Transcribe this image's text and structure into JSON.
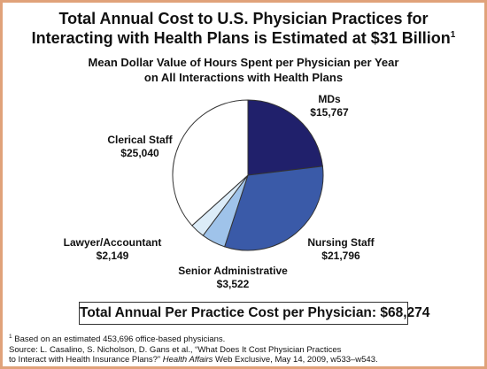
{
  "title": {
    "line1": "Total Annual Cost to U.S. Physician Practices for",
    "line2": "Interacting with Health Plans is Estimated at $31 Billion",
    "footnote_marker": "1"
  },
  "subtitle": {
    "line1": "Mean Dollar Value of Hours Spent per Physician per Year",
    "line2": "on All Interactions with Health Plans"
  },
  "chart_data": {
    "type": "pie",
    "title": "Mean Dollar Value of Hours Spent per Physician per Year on All Interactions with Health Plans",
    "slices": [
      {
        "name": "MDs",
        "value": 15767,
        "value_label": "$15,767",
        "color": "#20206b"
      },
      {
        "name": "Nursing Staff",
        "value": 21796,
        "value_label": "$21,796",
        "color": "#3a5aa8"
      },
      {
        "name": "Senior Administrative",
        "value": 3522,
        "value_label": "$3,522",
        "color": "#9fc3ea"
      },
      {
        "name": "Lawyer/Accountant",
        "value": 2149,
        "value_label": "$2,149",
        "color": "#dcecf8"
      },
      {
        "name": "Clerical Staff",
        "value": 25040,
        "value_label": "$25,040",
        "color": "#ffffff"
      }
    ],
    "start_angle": "12 o'clock",
    "direction": "clockwise"
  },
  "total": {
    "text": "Total Annual Per Practice Cost per Physician: $68,274"
  },
  "footnotes": {
    "marker": "1",
    "note": " Based on an estimated 453,696 office-based physicians.",
    "source_prefix": "Source: L. Casalino, S. Nicholson, D. Gans et al., “What Does It Cost Physician Practices",
    "source_line2_prefix": "to Interact with Health Insurance Plans?”",
    "journal": "Health Affairs",
    "source_line2_suffix": " Web Exclusive, May 14, 2009, w533–w543."
  },
  "colors": {
    "frame": "#e0a27a",
    "outline": "#333333"
  }
}
